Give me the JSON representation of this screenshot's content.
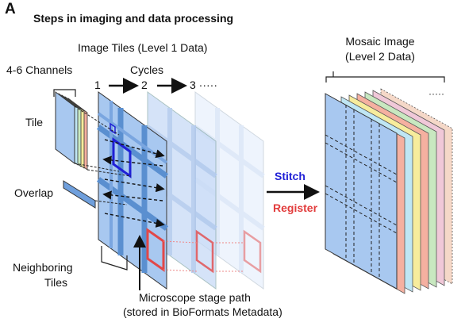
{
  "panel_letter": "A",
  "heading": "Steps in imaging and data processing",
  "image_tiles": {
    "line1": "Image Tiles (Level 1 Data)",
    "cycles_label": "Cycles",
    "cycle_steps": [
      "1",
      "2",
      "3 ·····"
    ]
  },
  "mosaic": {
    "line1": "Mosaic Image",
    "line2": "(Level 2 Data)"
  },
  "channels_label": "4-6 Channels",
  "tile_label": "Tile",
  "overlap_label": "Overlap",
  "neighboring_tiles": {
    "line1": "Neighboring",
    "line2": "Tiles"
  },
  "stage_path": {
    "line1": "Microscope stage path",
    "line2": "(stored in BioFormats Metadata)"
  },
  "stitch_label": "Stitch",
  "register_label": "Register",
  "colors": {
    "blue_text": "#1f1fd6",
    "red_text": "#e23c3c",
    "tile_blue": "#a8c8f0",
    "grid_blue": "#5a8fd0",
    "red_box": "#e24848",
    "mosaic_layers": [
      "#bfe6f4",
      "#f7ec9c",
      "#f5b0a0",
      "#c8e8c0",
      "#f0c8d8"
    ]
  }
}
